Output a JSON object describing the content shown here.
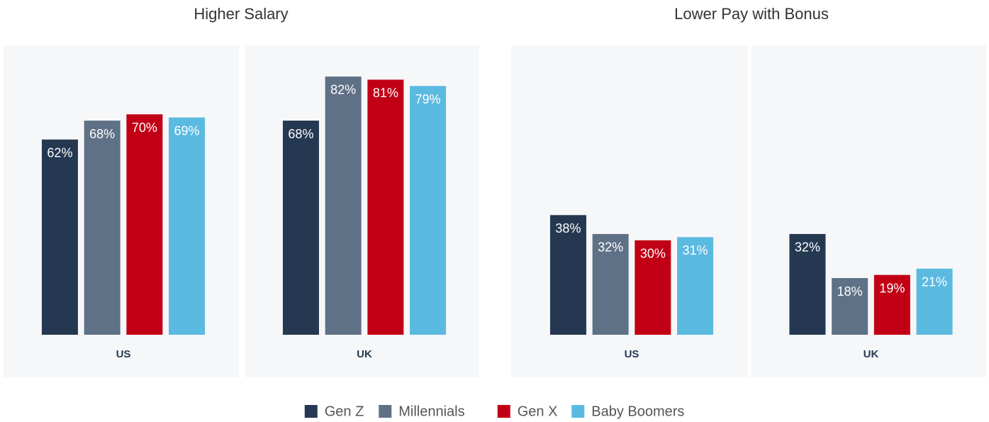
{
  "chart_data": [
    {
      "type": "bar",
      "title": "Higher Salary",
      "categories": [
        "US",
        "UK"
      ],
      "series": [
        {
          "name": "Gen Z",
          "color": "#253852",
          "values": [
            62,
            68
          ],
          "value_labels": [
            "62%",
            "68%"
          ]
        },
        {
          "name": "Millennials",
          "color": "#5f7186",
          "values": [
            68,
            82
          ],
          "value_labels": [
            "68%",
            "82%"
          ]
        },
        {
          "name": "Gen X",
          "color": "#c10016",
          "values": [
            70,
            81
          ],
          "value_labels": [
            "70%",
            "81%"
          ]
        },
        {
          "name": "Baby Boomers",
          "color": "#5bbae0",
          "values": [
            69,
            79
          ],
          "value_labels": [
            "69%",
            "79%"
          ]
        }
      ]
    },
    {
      "type": "bar",
      "title": "Lower Pay with Bonus",
      "categories": [
        "US",
        "UK"
      ],
      "series": [
        {
          "name": "Gen Z",
          "color": "#253852",
          "values": [
            38,
            32
          ],
          "value_labels": [
            "38%",
            "32%"
          ]
        },
        {
          "name": "Millennials",
          "color": "#5f7186",
          "values": [
            32,
            18
          ],
          "value_labels": [
            "32%",
            "18%"
          ]
        },
        {
          "name": "Gen X",
          "color": "#c10016",
          "values": [
            30,
            19
          ],
          "value_labels": [
            "30%",
            "19%"
          ]
        },
        {
          "name": "Baby Boomers",
          "color": "#5bbae0",
          "values": [
            31,
            21
          ],
          "value_labels": [
            "31%",
            "21%"
          ]
        }
      ]
    }
  ]
}
